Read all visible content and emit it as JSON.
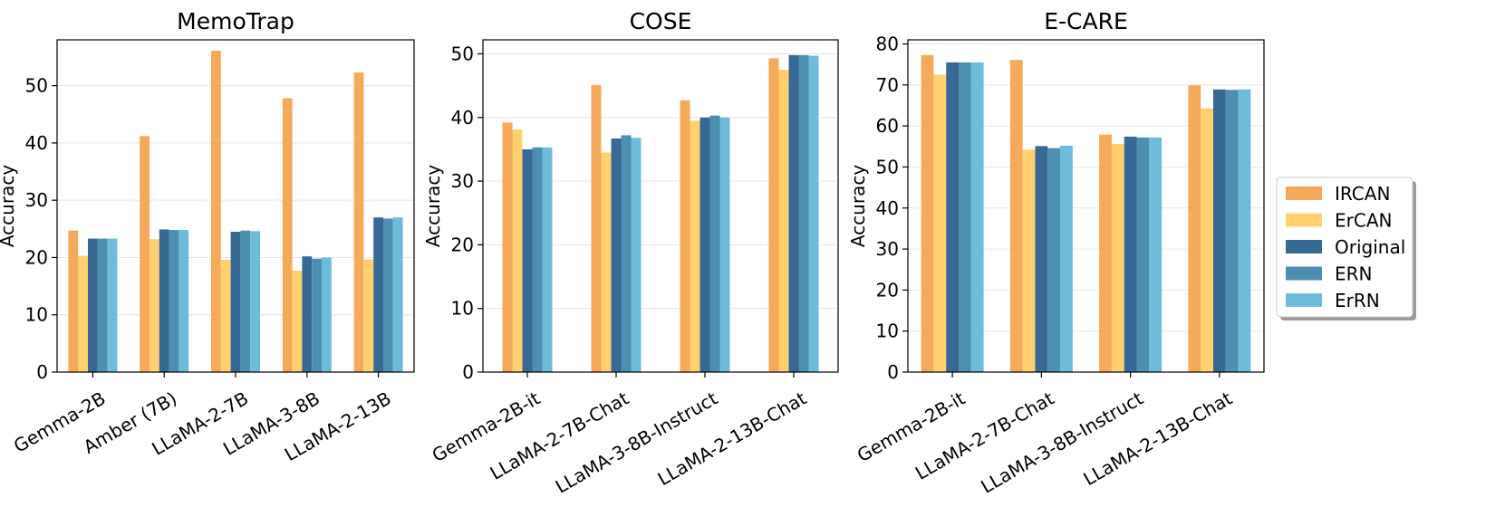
{
  "chart_data": [
    {
      "type": "bar",
      "title": "MemoTrap",
      "ylabel": "Accuracy",
      "xlabel": "",
      "ylim": [
        0,
        58
      ],
      "yticks": [
        0,
        10,
        20,
        30,
        40,
        50
      ],
      "grid": "horizontal",
      "categories": [
        "Gemma-2B",
        "Amber (7B)",
        "LLaMA-2-7B",
        "LLaMA-3-8B",
        "LLaMA-2-13B"
      ],
      "series": [
        {
          "name": "IRCAN",
          "values": [
            24.7,
            41.2,
            56.1,
            47.8,
            52.3
          ]
        },
        {
          "name": "ErCAN",
          "values": [
            20.3,
            23.2,
            19.6,
            17.7,
            19.7
          ]
        },
        {
          "name": "Original",
          "values": [
            23.3,
            24.9,
            24.5,
            20.2,
            27.0
          ]
        },
        {
          "name": "ERN",
          "values": [
            23.3,
            24.8,
            24.7,
            19.8,
            26.8
          ]
        },
        {
          "name": "ErRN",
          "values": [
            23.3,
            24.8,
            24.6,
            20.0,
            27.0
          ]
        }
      ]
    },
    {
      "type": "bar",
      "title": "COSE",
      "ylabel": "Accuracy",
      "xlabel": "",
      "ylim": [
        0,
        52.2
      ],
      "yticks": [
        0,
        10,
        20,
        30,
        40,
        50
      ],
      "grid": "horizontal",
      "categories": [
        "Gemma-2B-it",
        "LLaMA-2-7B-Chat",
        "LLaMA-3-8B-Instruct",
        "LLaMA-2-13B-Chat"
      ],
      "series": [
        {
          "name": "IRCAN",
          "values": [
            39.2,
            45.1,
            42.7,
            49.3
          ]
        },
        {
          "name": "ErCAN",
          "values": [
            38.1,
            34.5,
            39.5,
            47.5
          ]
        },
        {
          "name": "Original",
          "values": [
            35.0,
            36.7,
            40.0,
            49.8
          ]
        },
        {
          "name": "ERN",
          "values": [
            35.3,
            37.2,
            40.3,
            49.8
          ]
        },
        {
          "name": "ErRN",
          "values": [
            35.3,
            36.8,
            40.0,
            49.7
          ]
        }
      ]
    },
    {
      "type": "bar",
      "title": "E-CARE",
      "ylabel": "Accuracy",
      "xlabel": "",
      "ylim": [
        0,
        81
      ],
      "yticks": [
        0,
        10,
        20,
        30,
        40,
        50,
        60,
        70,
        80
      ],
      "grid": "horizontal",
      "categories": [
        "Gemma-2B-it",
        "LLaMA-2-7B-Chat",
        "LLaMA-3-8B-Instruct",
        "LLaMA-2-13B-Chat"
      ],
      "series": [
        {
          "name": "IRCAN",
          "values": [
            77.3,
            76.1,
            57.9,
            69.9
          ]
        },
        {
          "name": "ErCAN",
          "values": [
            72.5,
            54.2,
            55.6,
            64.3
          ]
        },
        {
          "name": "Original",
          "values": [
            75.5,
            55.1,
            57.4,
            68.9
          ]
        },
        {
          "name": "ERN",
          "values": [
            75.5,
            54.6,
            57.2,
            68.8
          ]
        },
        {
          "name": "ErRN",
          "values": [
            75.5,
            55.2,
            57.2,
            68.9
          ]
        }
      ]
    }
  ],
  "legend": {
    "placement": "right",
    "entries": [
      {
        "label": "IRCAN",
        "color": "#F5A95A"
      },
      {
        "label": "ErCAN",
        "color": "#FFD070"
      },
      {
        "label": "Original",
        "color": "#386894"
      },
      {
        "label": "ERN",
        "color": "#4D8FB0"
      },
      {
        "label": "ErRN",
        "color": "#6EBCDA"
      }
    ]
  },
  "colors": {
    "IRCAN": "#F5A95A",
    "ErCAN": "#FFD070",
    "Original": "#386894",
    "ERN": "#4D8FB0",
    "ErRN": "#6EBCDA",
    "grid": "#e6e6e6",
    "axis": "#000000"
  }
}
